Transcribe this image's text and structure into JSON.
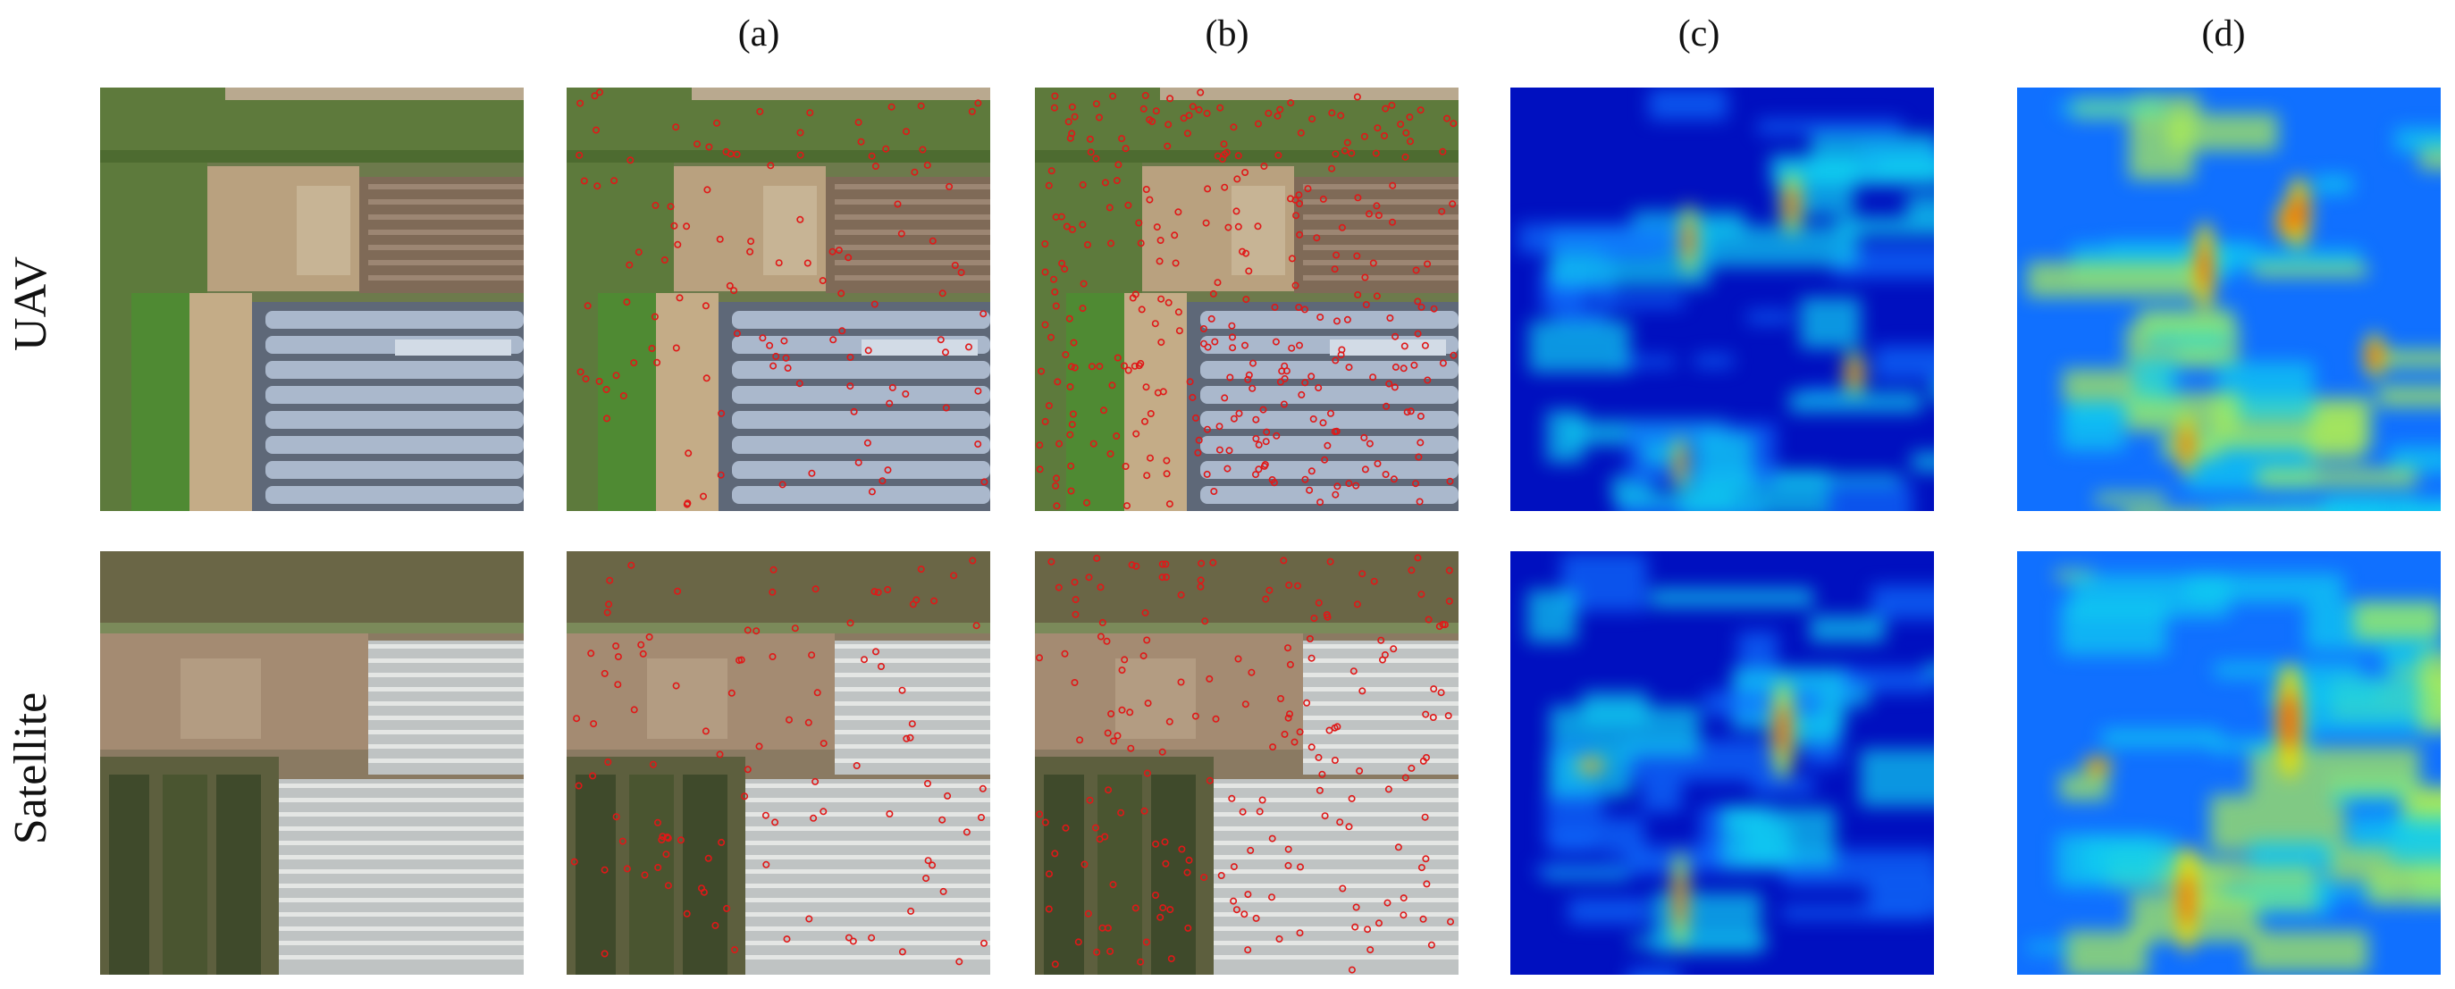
{
  "figure": {
    "columns": [
      {
        "id": "a",
        "label": "(a)"
      },
      {
        "id": "b",
        "label": "(b)"
      },
      {
        "id": "c",
        "label": "(c)"
      },
      {
        "id": "d",
        "label": "(d)"
      }
    ],
    "rows": [
      {
        "id": "uav",
        "label": "UAV"
      },
      {
        "id": "satellite",
        "label": "Satellite"
      }
    ],
    "keypoint_color": "#e01818",
    "heatmap_colors": [
      "#0010c0",
      "#1070ff",
      "#10d0f0",
      "#b0f050",
      "#f0e000",
      "#ff2000"
    ]
  }
}
